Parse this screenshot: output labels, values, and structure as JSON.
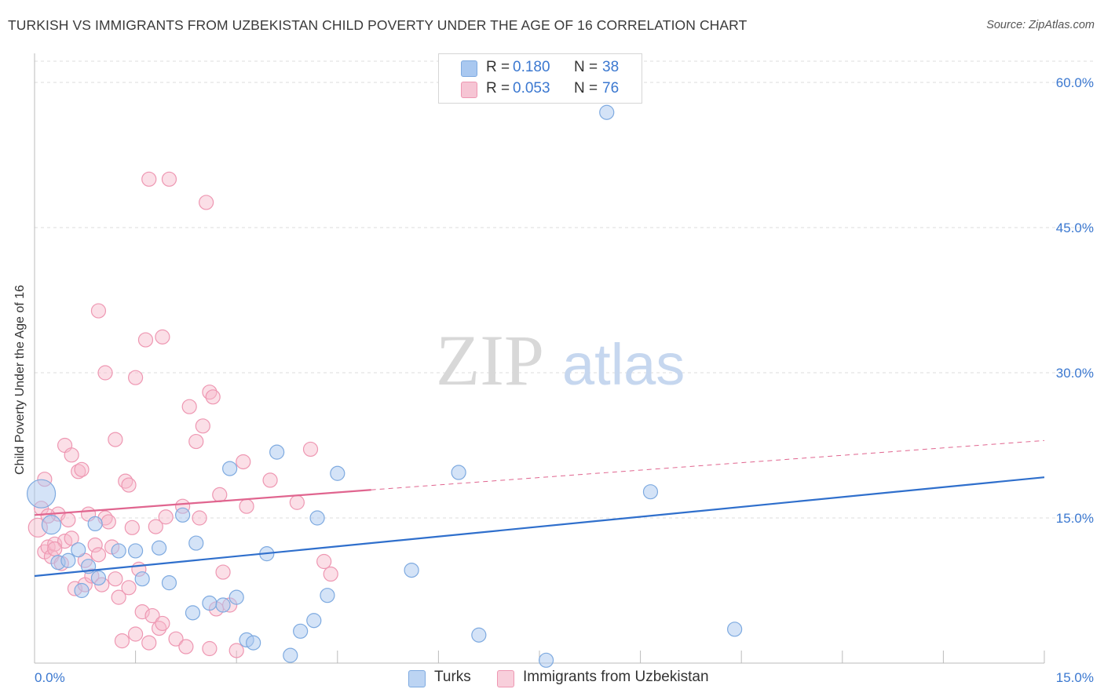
{
  "header": {
    "title": "TURKISH VS IMMIGRANTS FROM UZBEKISTAN CHILD POVERTY UNDER THE AGE OF 16 CORRELATION CHART",
    "source": "Source: ZipAtlas.com"
  },
  "watermark": {
    "zip": "ZIP",
    "atlas": "atlas"
  },
  "legend": {
    "rows": [
      {
        "r_label": "R =",
        "r_value": "0.180",
        "n_label": "N =",
        "n_value": "38"
      },
      {
        "r_label": "R =",
        "r_value": "0.053",
        "n_label": "N =",
        "n_value": "76"
      }
    ]
  },
  "bottom_legend": {
    "turks": "Turks",
    "uzbek": "Immigrants from Uzbekistan"
  },
  "colors": {
    "turks_fill": "#a9c8f0",
    "turks_stroke": "#7eaae0",
    "turks_line": "#2f6fcc",
    "uzbek_fill": "#f6b8ca",
    "uzbek_stroke": "#ee97b2",
    "uzbek_line": "#e0658f",
    "axis_label": "#3b78d0",
    "grid": "#dddddd"
  },
  "chart_data": {
    "type": "scatter",
    "title": "TURKISH VS IMMIGRANTS FROM UZBEKISTAN CHILD POVERTY UNDER THE AGE OF 16 CORRELATION CHART",
    "xlabel": "",
    "ylabel": "Child Poverty Under the Age of 16",
    "xlim": [
      0,
      15
    ],
    "ylim": [
      0,
      63
    ],
    "x_tick_labels": [
      "0.0%",
      "15.0%"
    ],
    "y_ticks": [
      15,
      30,
      45,
      60
    ],
    "y_tick_labels": [
      "15.0%",
      "30.0%",
      "45.0%",
      "60.0%"
    ],
    "grid": true,
    "legend_position": "top-center",
    "series": [
      {
        "name": "Turks",
        "R": 0.18,
        "N": 38,
        "trend": {
          "x": [
            0,
            15
          ],
          "y": [
            9.0,
            19.2
          ],
          "style": "solid"
        },
        "points": [
          [
            0.1,
            17.5,
            18
          ],
          [
            0.25,
            14.3,
            12
          ],
          [
            0.35,
            10.4,
            9
          ],
          [
            0.5,
            10.6,
            9
          ],
          [
            0.65,
            11.7,
            9
          ],
          [
            0.7,
            7.5,
            9
          ],
          [
            0.8,
            10.0,
            9
          ],
          [
            0.95,
            8.8,
            9
          ],
          [
            1.25,
            11.6,
            9
          ],
          [
            1.5,
            11.6,
            9
          ],
          [
            1.6,
            8.7,
            9
          ],
          [
            1.85,
            11.9,
            9
          ],
          [
            2.0,
            8.3,
            9
          ],
          [
            2.2,
            15.3,
            9
          ],
          [
            2.35,
            5.2,
            9
          ],
          [
            2.4,
            12.4,
            9
          ],
          [
            2.6,
            6.2,
            9
          ],
          [
            2.8,
            6.0,
            9
          ],
          [
            2.9,
            20.1,
            9
          ],
          [
            3.0,
            6.8,
            9
          ],
          [
            3.15,
            2.4,
            9
          ],
          [
            3.25,
            2.1,
            9
          ],
          [
            3.45,
            11.3,
            9
          ],
          [
            3.6,
            21.8,
            9
          ],
          [
            3.8,
            0.8,
            9
          ],
          [
            3.95,
            3.3,
            9
          ],
          [
            4.15,
            4.4,
            9
          ],
          [
            4.2,
            15.0,
            9
          ],
          [
            4.35,
            7.0,
            9
          ],
          [
            4.5,
            19.6,
            9
          ],
          [
            5.6,
            9.6,
            9
          ],
          [
            6.3,
            19.7,
            9
          ],
          [
            6.6,
            2.9,
            9
          ],
          [
            7.6,
            0.3,
            9
          ],
          [
            8.5,
            56.9,
            9
          ],
          [
            9.15,
            17.7,
            9
          ],
          [
            10.4,
            3.5,
            9
          ],
          [
            0.9,
            14.4,
            9
          ]
        ]
      },
      {
        "name": "Immigrants from Uzbekistan",
        "R": 0.053,
        "N": 76,
        "trend_solid": {
          "x": [
            0,
            5.0
          ],
          "y": [
            15.3,
            17.9
          ]
        },
        "trend_dashed": {
          "x": [
            5.0,
            15
          ],
          "y": [
            17.9,
            23.0
          ]
        },
        "points": [
          [
            0.05,
            14.0,
            12
          ],
          [
            0.1,
            16.0,
            9
          ],
          [
            0.15,
            19.0,
            9
          ],
          [
            0.15,
            11.5,
            9
          ],
          [
            0.2,
            12.0,
            9
          ],
          [
            0.25,
            11.0,
            9
          ],
          [
            0.3,
            12.3,
            9
          ],
          [
            0.35,
            15.4,
            9
          ],
          [
            0.4,
            10.3,
            9
          ],
          [
            0.45,
            12.6,
            9
          ],
          [
            0.45,
            22.5,
            9
          ],
          [
            0.5,
            14.8,
            9
          ],
          [
            0.55,
            21.5,
            9
          ],
          [
            0.6,
            7.7,
            9
          ],
          [
            0.65,
            19.8,
            9
          ],
          [
            0.7,
            20.0,
            9
          ],
          [
            0.75,
            10.6,
            9
          ],
          [
            0.75,
            8.1,
            9
          ],
          [
            0.8,
            15.4,
            9
          ],
          [
            0.85,
            9.0,
            9
          ],
          [
            0.9,
            12.2,
            9
          ],
          [
            0.95,
            11.2,
            9
          ],
          [
            1.0,
            8.1,
            9
          ],
          [
            1.05,
            15.0,
            9
          ],
          [
            1.1,
            14.6,
            9
          ],
          [
            1.15,
            12.0,
            9
          ],
          [
            1.2,
            8.7,
            9
          ],
          [
            1.25,
            6.8,
            9
          ],
          [
            1.3,
            2.3,
            9
          ],
          [
            1.35,
            18.8,
            9
          ],
          [
            1.4,
            18.4,
            9
          ],
          [
            1.45,
            14.0,
            9
          ],
          [
            1.5,
            3.0,
            9
          ],
          [
            1.55,
            9.7,
            9
          ],
          [
            1.6,
            5.3,
            9
          ],
          [
            1.65,
            33.4,
            9
          ],
          [
            1.7,
            2.1,
            9
          ],
          [
            1.75,
            4.9,
            9
          ],
          [
            1.8,
            14.1,
            9
          ],
          [
            1.85,
            3.6,
            9
          ],
          [
            1.9,
            4.1,
            9
          ],
          [
            1.95,
            15.1,
            9
          ],
          [
            2.0,
            50.0,
            9
          ],
          [
            2.1,
            2.5,
            9
          ],
          [
            2.2,
            16.2,
            9
          ],
          [
            2.25,
            1.7,
            9
          ],
          [
            2.3,
            26.5,
            9
          ],
          [
            2.4,
            22.9,
            9
          ],
          [
            2.45,
            15.0,
            9
          ],
          [
            2.5,
            24.5,
            9
          ],
          [
            2.55,
            47.6,
            9
          ],
          [
            2.6,
            28.0,
            9
          ],
          [
            2.65,
            27.5,
            9
          ],
          [
            2.7,
            5.6,
            9
          ],
          [
            2.75,
            17.4,
            9
          ],
          [
            2.8,
            9.4,
            9
          ],
          [
            2.9,
            6.0,
            9
          ],
          [
            3.0,
            1.3,
            9
          ],
          [
            3.1,
            20.8,
            9
          ],
          [
            3.15,
            16.2,
            9
          ],
          [
            3.5,
            18.9,
            9
          ],
          [
            3.9,
            16.6,
            9
          ],
          [
            4.1,
            22.1,
            9
          ],
          [
            4.3,
            10.5,
            9
          ],
          [
            4.4,
            9.2,
            9
          ],
          [
            0.95,
            36.4,
            9
          ],
          [
            1.05,
            30.0,
            9
          ],
          [
            1.2,
            23.1,
            9
          ],
          [
            1.5,
            29.5,
            9
          ],
          [
            1.9,
            33.7,
            9
          ],
          [
            0.3,
            11.8,
            9
          ],
          [
            0.55,
            12.9,
            9
          ],
          [
            1.4,
            7.8,
            9
          ],
          [
            2.6,
            1.5,
            9
          ],
          [
            1.7,
            50.0,
            9
          ],
          [
            0.2,
            15.2,
            9
          ]
        ]
      }
    ]
  }
}
